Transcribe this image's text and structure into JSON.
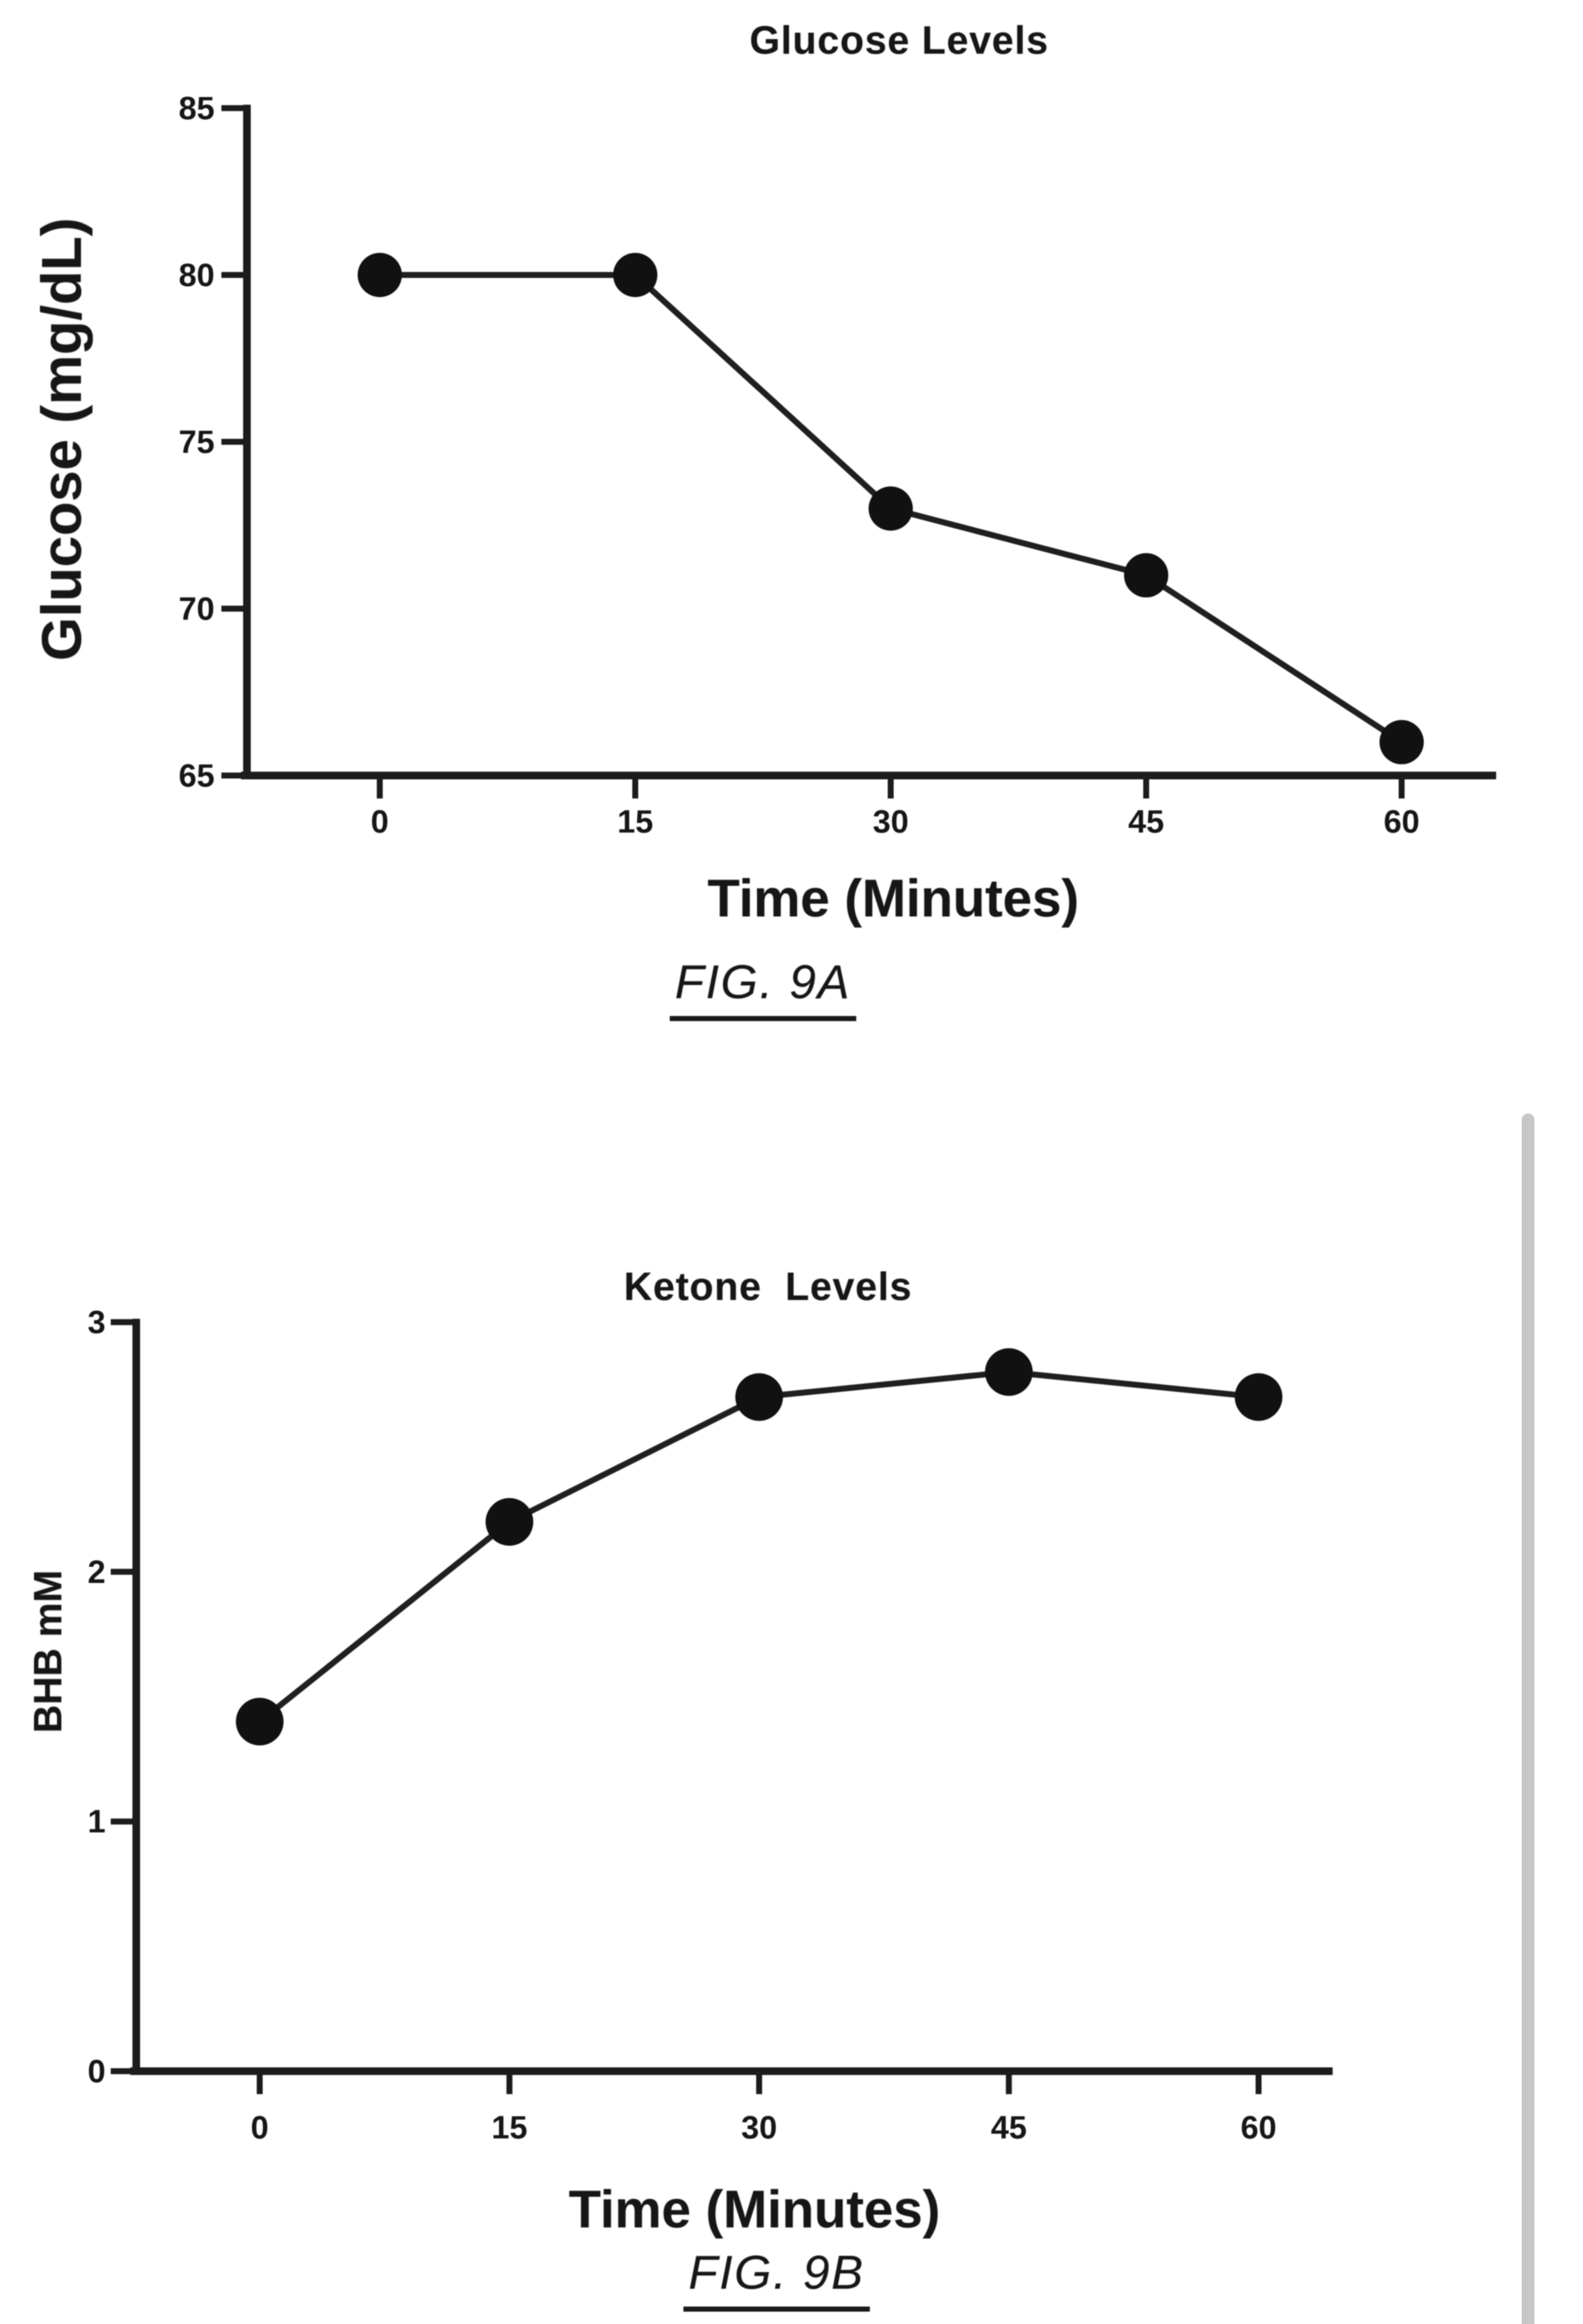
{
  "page": {
    "background": "#ffffff"
  },
  "chart_data": [
    {
      "id": "fig-9a",
      "type": "line",
      "title": "Glucose Levels",
      "xlabel": "Time (Minutes)",
      "ylabel": "Glucose (mg/dL)",
      "caption": "FIG. 9A",
      "x": [
        0,
        15,
        30,
        45,
        60
      ],
      "y": [
        80,
        80,
        73,
        71,
        66
      ],
      "series_name": "Glucose",
      "x_ticks": [
        0,
        15,
        30,
        45,
        60
      ],
      "y_ticks": [
        65,
        70,
        75,
        80,
        85
      ],
      "xlim": [
        0,
        60
      ],
      "ylim": [
        65,
        85
      ],
      "grid": false,
      "legend": null,
      "marker": "filled-circle",
      "line_color": "#1f1f1f",
      "marker_color": "#111111",
      "axis_color": "#1c1c1c"
    },
    {
      "id": "fig-9b",
      "type": "line",
      "title": "Ketone  Levels",
      "xlabel": "Time (Minutes)",
      "ylabel": "BHB mM",
      "caption": "FIG. 9B",
      "x": [
        0,
        15,
        30,
        45,
        60
      ],
      "y": [
        1.4,
        2.2,
        2.7,
        2.8,
        2.7
      ],
      "series_name": "BHB",
      "x_ticks": [
        0,
        15,
        30,
        45,
        60
      ],
      "y_ticks": [
        0,
        1,
        2,
        3
      ],
      "xlim": [
        0,
        60
      ],
      "ylim": [
        0,
        3
      ],
      "grid": false,
      "legend": null,
      "marker": "filled-circle",
      "line_color": "#1f1f1f",
      "marker_color": "#111111",
      "axis_color": "#1c1c1c"
    }
  ],
  "decor": {
    "edge_bar_color": "#c7c7c7"
  }
}
